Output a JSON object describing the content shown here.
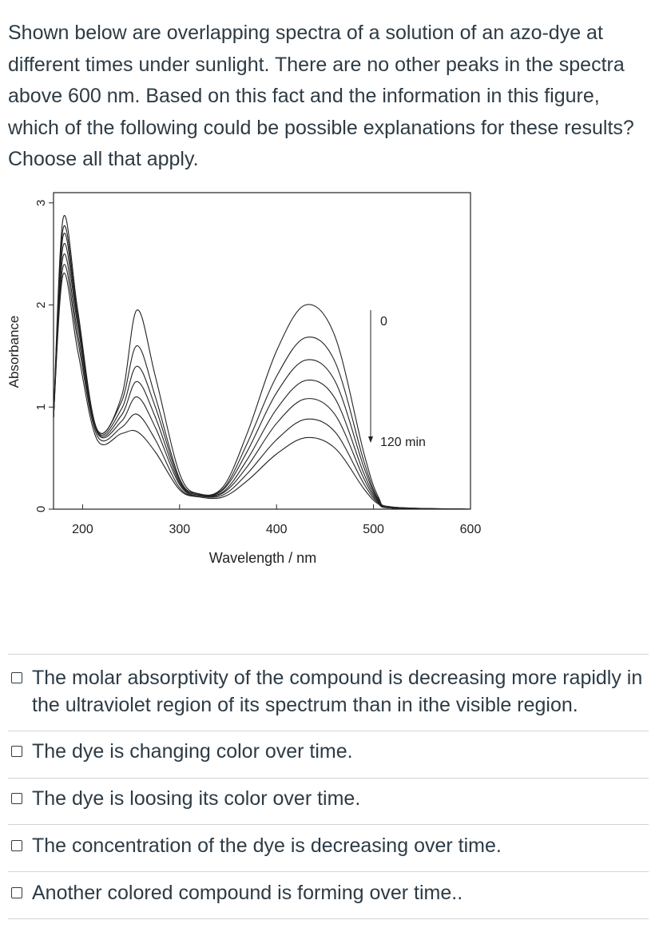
{
  "question": {
    "text": "Shown below are overlapping spectra of a solution of an azo-dye at different times under sunlight. There are no other peaks in the spectra above 600 nm. Based on this fact and the information in this figure, which of the following could be possible explanations for these results? Choose all that apply."
  },
  "chart_data": {
    "type": "line",
    "xlabel": "Wavelength / nm",
    "ylabel": "Absorbance",
    "xlim": [
      170,
      600
    ],
    "ylim": [
      0,
      3.1
    ],
    "xticks": [
      200,
      300,
      400,
      500,
      600
    ],
    "yticks": [
      0,
      1,
      2,
      3
    ],
    "grid": false,
    "annotations": {
      "start_label": "0",
      "end_label": "120 min"
    },
    "x": [
      170,
      180,
      195,
      215,
      240,
      256,
      275,
      300,
      320,
      345,
      370,
      400,
      430,
      460,
      490,
      505,
      520,
      600
    ],
    "series": [
      {
        "values": [
          0.9,
          2.85,
          1.95,
          0.78,
          1.1,
          1.95,
          1.3,
          0.35,
          0.15,
          0.22,
          0.75,
          1.55,
          2.0,
          1.7,
          0.55,
          0.12,
          0.02,
          0.0
        ]
      },
      {
        "values": [
          0.9,
          2.75,
          1.9,
          0.78,
          1.05,
          1.6,
          1.1,
          0.3,
          0.15,
          0.2,
          0.65,
          1.3,
          1.68,
          1.45,
          0.47,
          0.1,
          0.02,
          0.0
        ]
      },
      {
        "values": [
          0.9,
          2.68,
          1.85,
          0.77,
          0.98,
          1.4,
          1.0,
          0.28,
          0.14,
          0.19,
          0.57,
          1.14,
          1.46,
          1.26,
          0.41,
          0.09,
          0.02,
          0.0
        ]
      },
      {
        "values": [
          0.9,
          2.58,
          1.8,
          0.76,
          0.92,
          1.25,
          0.9,
          0.26,
          0.14,
          0.17,
          0.49,
          0.98,
          1.26,
          1.09,
          0.35,
          0.08,
          0.01,
          0.0
        ]
      },
      {
        "values": [
          0.9,
          2.48,
          1.72,
          0.75,
          0.86,
          1.1,
          0.8,
          0.24,
          0.13,
          0.16,
          0.42,
          0.84,
          1.08,
          0.93,
          0.3,
          0.07,
          0.01,
          0.0
        ]
      },
      {
        "values": [
          0.9,
          2.38,
          1.65,
          0.72,
          0.8,
          0.93,
          0.68,
          0.21,
          0.13,
          0.14,
          0.35,
          0.68,
          0.88,
          0.76,
          0.25,
          0.06,
          0.01,
          0.0
        ]
      },
      {
        "values": [
          0.9,
          2.3,
          1.55,
          0.68,
          0.74,
          0.76,
          0.56,
          0.19,
          0.12,
          0.12,
          0.28,
          0.54,
          0.7,
          0.6,
          0.2,
          0.05,
          0.01,
          0.0
        ]
      }
    ]
  },
  "answers": [
    {
      "label": "The molar absorptivity of the compound is decreasing more rapidly in the ultraviolet region of its spectrum than in ithe visible region."
    },
    {
      "label": "The dye is changing color over time."
    },
    {
      "label": "The dye is loosing its color over time."
    },
    {
      "label": "The concentration of the dye is decreasing over time."
    },
    {
      "label": "Another colored compound is forming over time.."
    }
  ]
}
